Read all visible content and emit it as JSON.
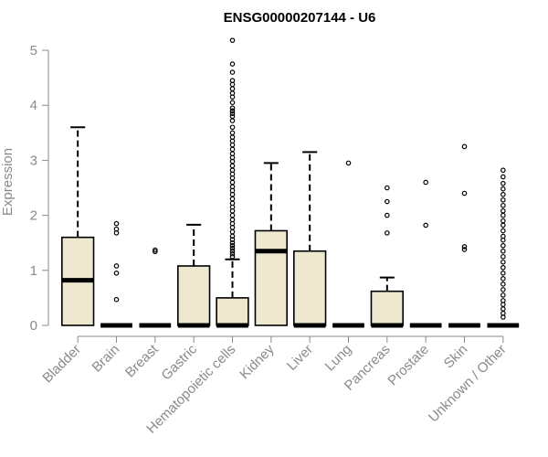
{
  "chart_data": {
    "type": "box",
    "title": "ENSG00000207144 - U6",
    "xlabel": "",
    "ylabel": "Expression",
    "ylim": [
      0,
      5.2
    ],
    "yticks": [
      0,
      1,
      2,
      3,
      4,
      5
    ],
    "box_fill": "#eee8d0",
    "grid": false,
    "categories": [
      "Bladder",
      "Brain",
      "Breast",
      "Gastric",
      "Hematopoietic cells",
      "Kidney",
      "Liver",
      "Lung",
      "Pancreas",
      "Prostate",
      "Skin",
      "Unknown / Other"
    ],
    "series": [
      {
        "category": "Bladder",
        "min": 0,
        "q1": 0,
        "median": 0.82,
        "q3": 1.6,
        "max": 3.6,
        "outliers": []
      },
      {
        "category": "Brain",
        "min": 0,
        "q1": 0,
        "median": 0,
        "q3": 0,
        "max": 0,
        "outliers": [
          1.85,
          1.75,
          1.68,
          1.08,
          0.95,
          0.47
        ]
      },
      {
        "category": "Breast",
        "min": 0,
        "q1": 0,
        "median": 0,
        "q3": 0,
        "max": 0,
        "outliers": [
          1.37,
          1.34
        ]
      },
      {
        "category": "Gastric",
        "min": 0,
        "q1": 0,
        "median": 0,
        "q3": 1.08,
        "max": 1.83,
        "outliers": []
      },
      {
        "category": "Hematopoietic cells",
        "min": 0,
        "q1": 0,
        "median": 0,
        "q3": 0.5,
        "max": 1.2,
        "outliers": [
          5.18,
          4.75,
          4.6,
          4.45,
          4.38,
          4.3,
          4.22,
          4.15,
          4.05,
          3.95,
          3.9,
          3.85,
          3.8,
          3.72,
          3.6,
          3.5,
          3.42,
          3.35,
          3.28,
          3.2,
          3.12,
          3.05,
          2.98,
          2.9,
          2.82,
          2.75,
          2.68,
          2.6,
          2.52,
          2.45,
          2.38,
          2.3,
          2.22,
          2.15,
          2.08,
          2.0,
          1.92,
          1.85,
          1.78,
          1.7,
          1.62,
          1.56,
          1.5,
          1.45,
          1.4,
          1.35,
          1.3,
          1.25
        ]
      },
      {
        "category": "Kidney",
        "min": 0,
        "q1": 0,
        "median": 1.35,
        "q3": 1.72,
        "max": 2.95,
        "outliers": []
      },
      {
        "category": "Liver",
        "min": 0,
        "q1": 0,
        "median": 0,
        "q3": 1.35,
        "max": 3.15,
        "outliers": []
      },
      {
        "category": "Lung",
        "min": 0,
        "q1": 0,
        "median": 0,
        "q3": 0,
        "max": 0,
        "outliers": [
          2.95
        ]
      },
      {
        "category": "Pancreas",
        "min": 0,
        "q1": 0,
        "median": 0,
        "q3": 0.62,
        "max": 0.87,
        "outliers": [
          2.5,
          2.25,
          2.0,
          1.68
        ]
      },
      {
        "category": "Prostate",
        "min": 0,
        "q1": 0,
        "median": 0,
        "q3": 0,
        "max": 0,
        "outliers": [
          2.6,
          1.82
        ]
      },
      {
        "category": "Skin",
        "min": 0,
        "q1": 0,
        "median": 0,
        "q3": 0,
        "max": 0,
        "outliers": [
          3.25,
          2.4,
          1.43,
          1.38
        ]
      },
      {
        "category": "Unknown / Other",
        "min": 0,
        "q1": 0,
        "median": 0,
        "q3": 0,
        "max": 0,
        "outliers": [
          2.82,
          2.7,
          2.58,
          2.48,
          2.38,
          2.28,
          2.18,
          2.08,
          2.0,
          1.9,
          1.82,
          1.72,
          1.62,
          1.55,
          1.45,
          1.35,
          1.25,
          1.15,
          1.05,
          0.95,
          0.85,
          0.75,
          0.65,
          0.55,
          0.45,
          0.38,
          0.3,
          0.22,
          0.15
        ]
      }
    ]
  }
}
